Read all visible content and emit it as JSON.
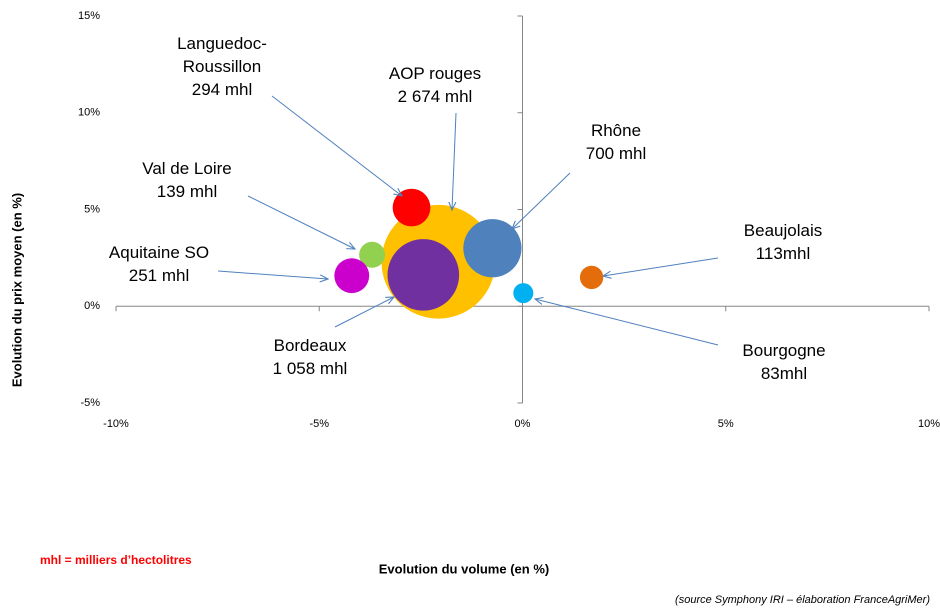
{
  "chart_data": {
    "type": "bubble",
    "categories": [
      "AOP rouges",
      "Languedoc-\nRoussillon",
      "Val de Loire",
      "Aquitaine SO",
      "Bordeaux",
      "Rhône",
      "Beaujolais",
      "Bourgogne"
    ],
    "x": [
      -2.07,
      -2.73,
      -3.7,
      -4.2,
      -2.44,
      -0.74,
      1.7,
      0.02
    ],
    "values": [
      2.3,
      5.1,
      2.66,
      1.58,
      1.62,
      3.0,
      1.49,
      0.68
    ],
    "sizes": [
      2674,
      294,
      139,
      251,
      1058,
      700,
      113,
      83
    ],
    "size_labels": [
      "2 674 mhl",
      "294 mhl",
      "139 mhl",
      "251 mhl",
      "1 058 mhl",
      "700 mhl",
      "113mhl",
      "83mhl"
    ],
    "colors": [
      "#ffc000",
      "#ff0000",
      "#92d050",
      "#cc00cc",
      "#7030a0",
      "#4f81bd",
      "#e46c0a",
      "#00b0f0"
    ],
    "xlim": [
      -10,
      10
    ],
    "ylim": [
      -5,
      15
    ],
    "xticks": [
      {
        "value": -10,
        "label": "-10%"
      },
      {
        "value": -5,
        "label": "-5%"
      },
      {
        "value": 0,
        "label": "0%"
      },
      {
        "value": 5,
        "label": "5%"
      },
      {
        "value": 10,
        "label": "10%"
      }
    ],
    "yticks": [
      {
        "value": -5,
        "label": "-5%"
      },
      {
        "value": 0,
        "label": "0%"
      },
      {
        "value": 5,
        "label": "5%"
      },
      {
        "value": 10,
        "label": "10%"
      },
      {
        "value": 15,
        "label": "15%"
      }
    ],
    "xlabel": "Evolution du volume (en %)",
    "ylabel": "Evolution du prix moyen (en %)",
    "note": "mhl = milliers d’hectolitres",
    "source": "(source Symphony IRI – élaboration FranceAgriMer)"
  }
}
